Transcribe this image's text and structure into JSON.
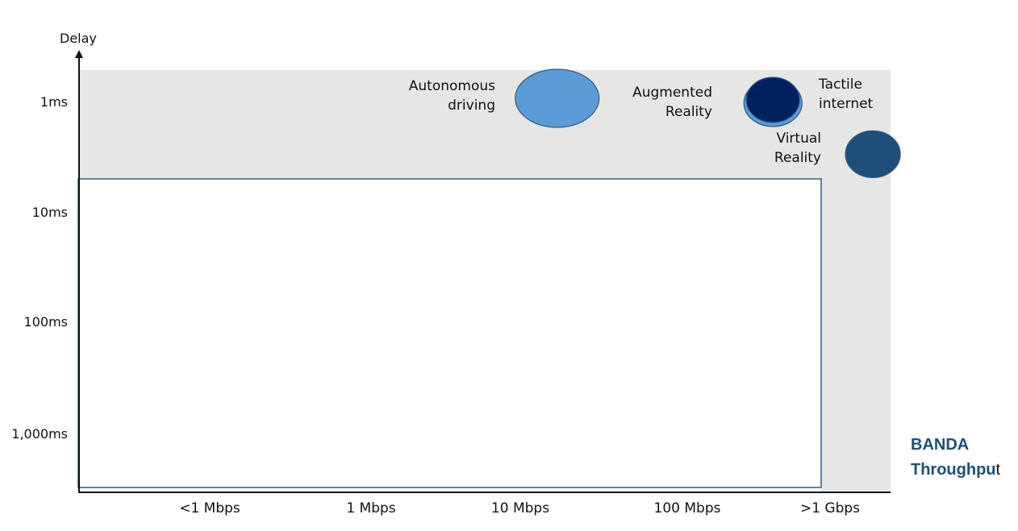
{
  "chart_data": {
    "type": "scatter",
    "title": "",
    "xlabel": "",
    "ylabel": "Delay",
    "x_categories": [
      "<1 Mbps",
      "1 Mbps",
      "10 Mbps",
      "100 Mbps",
      ">1 Gbps"
    ],
    "y_categories": [
      "1ms",
      "10ms",
      "100ms",
      "1,000ms"
    ],
    "y_scale": "log",
    "points": [
      {
        "label_lines": [
          "Autonomous",
          "driving"
        ],
        "x": "10 Mbps",
        "x_offset": 0.1,
        "y_ms": 1,
        "color": "#5b9bd5"
      },
      {
        "label_lines": [
          "Augmented",
          "Reality"
        ],
        "x": "100 Mbps",
        "x_offset": 0.6,
        "y_ms": 1,
        "color": "#5b9bd5"
      },
      {
        "label_lines": [
          "Tactile",
          "internet"
        ],
        "x": ">1 Gbps",
        "x_offset": -0.4,
        "y_ms": 1,
        "color": "#002060"
      },
      {
        "label_lines": [
          "Virtual",
          "Reality"
        ],
        "x": ">1 Gbps",
        "x_offset": 0.3,
        "y_ms": 3,
        "color": "#1f4e79"
      }
    ],
    "shaded_region": "high-throughput / low-delay band",
    "grid": false
  },
  "side_label": {
    "line1": "BANDA",
    "line2_main": "Throughpu",
    "line2_tail": "t"
  },
  "colors": {
    "band": "#e6e6e5",
    "panel_border": "#2e5a87",
    "axis": "#111111"
  }
}
